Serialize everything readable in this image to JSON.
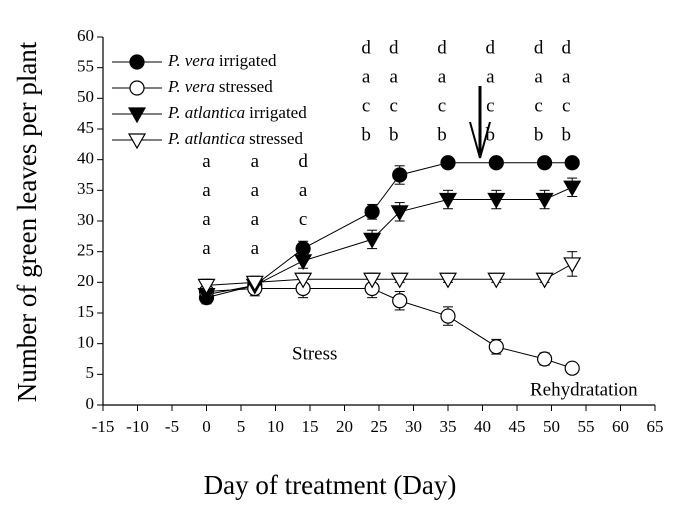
{
  "chart_data": {
    "type": "line",
    "xlabel": "Day of treatment (Day)",
    "ylabel": "Number of green leaves per plant",
    "xlim": [
      -15,
      65
    ],
    "xticks": [
      -15,
      -10,
      -5,
      0,
      5,
      10,
      15,
      20,
      25,
      30,
      35,
      40,
      45,
      50,
      55,
      60,
      65
    ],
    "ylim": [
      0,
      60
    ],
    "yticks": [
      0,
      5,
      10,
      15,
      20,
      25,
      30,
      35,
      40,
      45,
      50,
      55,
      60
    ],
    "x": [
      0,
      7,
      14,
      24,
      28,
      35,
      42,
      49,
      53
    ],
    "series": [
      {
        "name_italic": "P. vera",
        "name": "irrigated",
        "color": "#000000",
        "marker": "circle",
        "filled": true,
        "values": [
          17.5,
          19.5,
          25.5,
          31.5,
          37.5,
          39.5,
          39.5,
          39.5,
          39.5
        ],
        "errors": [
          1,
          1,
          1.2,
          1.2,
          1.5,
          0.8,
          0.8,
          0.8,
          0.8
        ]
      },
      {
        "name_italic": "P. vera",
        "name": "stressed",
        "color": "#000000",
        "marker": "circle",
        "filled": false,
        "values": [
          18.5,
          19,
          19,
          19,
          17,
          14.5,
          9.5,
          7.5,
          6
        ],
        "errors": [
          1,
          1.2,
          1.5,
          1.5,
          1.5,
          1.5,
          1.2,
          1,
          0.8
        ]
      },
      {
        "name_italic": "P. atlantica",
        "name": "irrigated",
        "color": "#000000",
        "marker": "triangle-down",
        "filled": true,
        "values": [
          18,
          19.5,
          23.5,
          27,
          31.5,
          33.5,
          33.5,
          33.5,
          35.5
        ],
        "errors": [
          1,
          1,
          1.2,
          1.5,
          1.5,
          1.5,
          1.5,
          1.5,
          1.5
        ]
      },
      {
        "name_italic": "P. atlantica",
        "name": "stressed",
        "color": "#000000",
        "marker": "triangle-down",
        "filled": false,
        "values": [
          19.5,
          20,
          20.5,
          20.5,
          20.5,
          20.5,
          20.5,
          20.5,
          23
        ],
        "errors": [
          1,
          1,
          1,
          1,
          0.5,
          0.5,
          0.5,
          0.5,
          2
        ]
      }
    ],
    "letters": [
      {
        "x": 0,
        "y": 39.5,
        "labels": [
          "a",
          "a",
          "a",
          "a"
        ]
      },
      {
        "x": 7,
        "y": 39.5,
        "labels": [
          "a",
          "a",
          "a",
          "a"
        ]
      },
      {
        "x": 14,
        "y": 39.5,
        "labels": [
          "d",
          "a",
          "c",
          "a"
        ]
      },
      {
        "x": 24,
        "y": 58,
        "labels": [
          "d",
          "a",
          "c",
          "b"
        ]
      },
      {
        "x": 28,
        "y": 58,
        "labels": [
          "d",
          "a",
          "c",
          "b"
        ]
      },
      {
        "x": 35,
        "y": 58,
        "labels": [
          "d",
          "a",
          "c",
          "b"
        ]
      },
      {
        "x": 42,
        "y": 58,
        "labels": [
          "d",
          "a",
          "c",
          "b"
        ]
      },
      {
        "x": 49,
        "y": 58,
        "labels": [
          "d",
          "a",
          "c",
          "b"
        ]
      },
      {
        "x": 53,
        "y": 58,
        "labels": [
          "d",
          "a",
          "c",
          "b"
        ]
      }
    ],
    "annotations": [
      "Stress",
      "Rehydratation"
    ]
  }
}
